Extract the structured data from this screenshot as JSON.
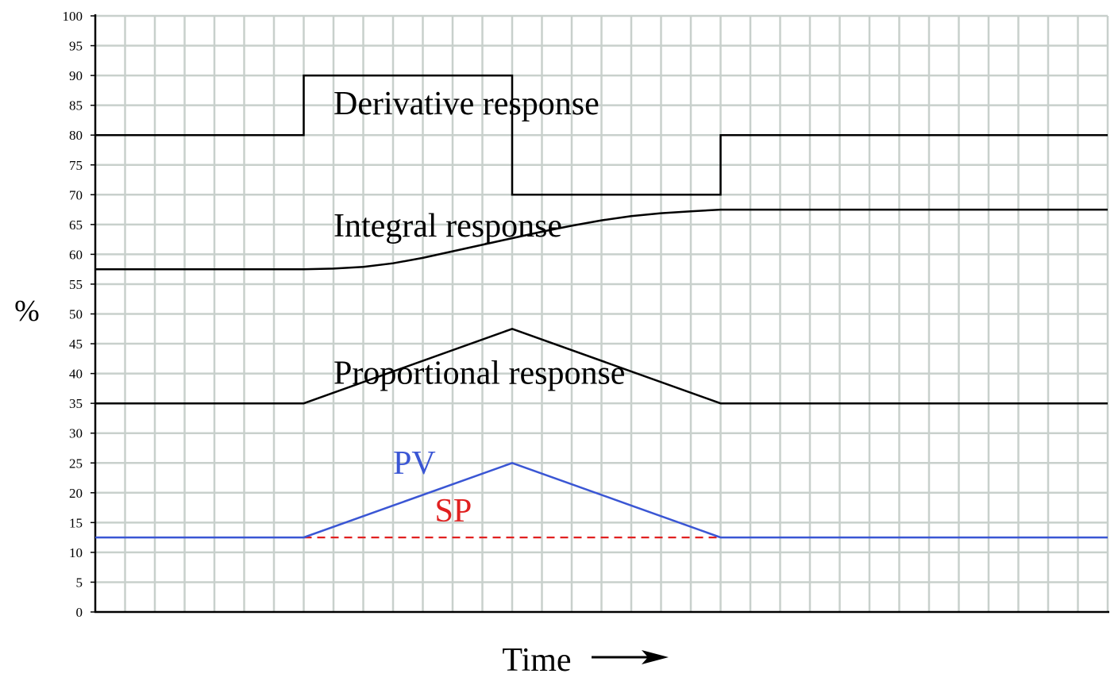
{
  "chart_data": {
    "type": "line",
    "ylabel": "%",
    "xlabel": "Time",
    "ylim": [
      0,
      100
    ],
    "yticks": [
      0,
      5,
      10,
      15,
      20,
      25,
      30,
      35,
      40,
      45,
      50,
      55,
      60,
      65,
      70,
      75,
      80,
      85,
      90,
      95,
      100
    ],
    "xlim": [
      0,
      34
    ],
    "grid": true,
    "colors": {
      "grid": "#c8d0cc",
      "axis": "#000000",
      "response": "#000000",
      "pv": "#3a56d4",
      "sp": "#e02020"
    },
    "series": [
      {
        "name": "Derivative response",
        "x": [
          0,
          7,
          7,
          14,
          14,
          21,
          21,
          34
        ],
        "y": [
          80,
          80,
          90,
          90,
          70,
          70,
          80,
          80
        ]
      },
      {
        "name": "Integral response",
        "x": [
          0,
          7,
          8,
          9,
          10,
          11,
          12,
          13,
          14,
          15,
          16,
          17,
          18,
          19,
          20,
          21,
          34
        ],
        "y": [
          57.5,
          57.5,
          57.6,
          57.9,
          58.5,
          59.4,
          60.5,
          61.6,
          62.7,
          63.8,
          64.8,
          65.7,
          66.4,
          66.9,
          67.2,
          67.5,
          67.5
        ]
      },
      {
        "name": "Proportional response",
        "x": [
          0,
          7,
          14,
          21,
          34
        ],
        "y": [
          35,
          35,
          47.5,
          35,
          35
        ]
      },
      {
        "name": "PV",
        "x": [
          0,
          7,
          14,
          21,
          34
        ],
        "y": [
          12.5,
          12.5,
          25,
          12.5,
          12.5
        ]
      },
      {
        "name": "SP",
        "x": [
          7,
          21
        ],
        "y": [
          12.5,
          12.5
        ],
        "dashed": true
      }
    ],
    "annotations": [
      {
        "text": "Derivative response",
        "x": 8,
        "y": 83.5,
        "color": "#000000"
      },
      {
        "text": "Integral response",
        "x": 8,
        "y": 63,
        "color": "#000000"
      },
      {
        "text": "Proportional response",
        "x": 8,
        "y": 38.3,
        "color": "#000000"
      },
      {
        "text": "PV",
        "x": 10,
        "y": 23.2,
        "color": "#3a56d4"
      },
      {
        "text": "SP",
        "x": 11.4,
        "y": 15.2,
        "color": "#e02020"
      }
    ]
  }
}
